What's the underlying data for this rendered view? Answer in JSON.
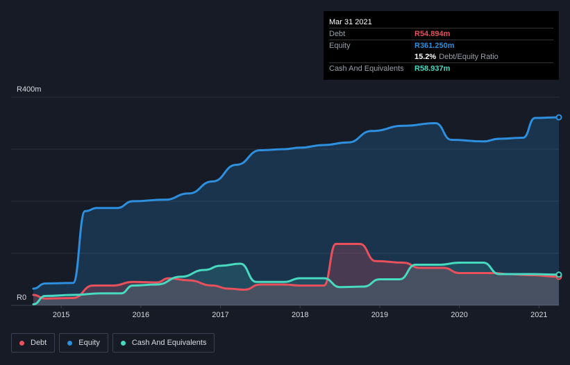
{
  "chart_data": {
    "type": "area",
    "title": "",
    "xlabel": "",
    "ylabel": "",
    "y_label_top": "R400m",
    "y_label_bottom": "R0",
    "ylim": [
      0,
      400
    ],
    "xlim": [
      2014.65,
      2021.25
    ],
    "x_tick_labels": [
      "2015",
      "2016",
      "2017",
      "2018",
      "2019",
      "2020",
      "2021"
    ],
    "x_ticks": [
      2015,
      2016,
      2017,
      2018,
      2019,
      2020,
      2021
    ],
    "grid": true,
    "legend_placement": "bottom-left",
    "series": [
      {
        "name": "Equity",
        "color": "#2d8fdd",
        "points": [
          [
            2014.65,
            32
          ],
          [
            2014.8,
            42
          ],
          [
            2015.15,
            43
          ],
          [
            2015.3,
            181
          ],
          [
            2015.45,
            187
          ],
          [
            2015.7,
            187
          ],
          [
            2015.9,
            200
          ],
          [
            2016.3,
            203
          ],
          [
            2016.6,
            215
          ],
          [
            2016.9,
            238
          ],
          [
            2017.2,
            270
          ],
          [
            2017.5,
            298
          ],
          [
            2017.8,
            300
          ],
          [
            2018.0,
            303
          ],
          [
            2018.3,
            308
          ],
          [
            2018.6,
            313
          ],
          [
            2018.9,
            335
          ],
          [
            2019.3,
            345
          ],
          [
            2019.7,
            350
          ],
          [
            2019.9,
            318
          ],
          [
            2020.3,
            315
          ],
          [
            2020.5,
            320
          ],
          [
            2020.8,
            322
          ],
          [
            2020.95,
            360
          ],
          [
            2021.25,
            361.25
          ]
        ]
      },
      {
        "name": "Debt",
        "color": "#e8505b",
        "points": [
          [
            2014.65,
            20
          ],
          [
            2014.8,
            13
          ],
          [
            2015.15,
            14
          ],
          [
            2015.4,
            38
          ],
          [
            2015.65,
            38
          ],
          [
            2015.9,
            45
          ],
          [
            2016.2,
            44
          ],
          [
            2016.35,
            52
          ],
          [
            2016.6,
            48
          ],
          [
            2016.9,
            38
          ],
          [
            2017.1,
            32
          ],
          [
            2017.3,
            30
          ],
          [
            2017.5,
            40
          ],
          [
            2017.8,
            40
          ],
          [
            2018.0,
            38
          ],
          [
            2018.3,
            38
          ],
          [
            2018.45,
            118
          ],
          [
            2018.75,
            118
          ],
          [
            2018.95,
            85
          ],
          [
            2019.3,
            82
          ],
          [
            2019.5,
            72
          ],
          [
            2019.8,
            72
          ],
          [
            2020.0,
            62
          ],
          [
            2020.45,
            62
          ],
          [
            2020.6,
            60
          ],
          [
            2020.9,
            58
          ],
          [
            2021.25,
            54.894
          ]
        ]
      },
      {
        "name": "Cash And Equivalents",
        "color": "#48d9c1",
        "points": [
          [
            2014.65,
            2
          ],
          [
            2014.8,
            18
          ],
          [
            2015.15,
            20
          ],
          [
            2015.5,
            23
          ],
          [
            2015.75,
            23
          ],
          [
            2015.9,
            38
          ],
          [
            2016.2,
            40
          ],
          [
            2016.5,
            55
          ],
          [
            2016.8,
            68
          ],
          [
            2017.0,
            76
          ],
          [
            2017.25,
            80
          ],
          [
            2017.45,
            45
          ],
          [
            2017.8,
            45
          ],
          [
            2018.0,
            52
          ],
          [
            2018.3,
            52
          ],
          [
            2018.5,
            35
          ],
          [
            2018.8,
            36
          ],
          [
            2019.0,
            50
          ],
          [
            2019.25,
            50
          ],
          [
            2019.45,
            78
          ],
          [
            2019.75,
            78
          ],
          [
            2020.0,
            82
          ],
          [
            2020.3,
            82
          ],
          [
            2020.5,
            60
          ],
          [
            2020.9,
            60
          ],
          [
            2021.25,
            58.937
          ]
        ]
      }
    ]
  },
  "tooltip": {
    "date": "Mar 31 2021",
    "debt_label": "Debt",
    "debt_value": "R54.894m",
    "equity_label": "Equity",
    "equity_value": "R361.250m",
    "ratio_value": "15.2%",
    "ratio_label": "Debt/Equity Ratio",
    "cash_label": "Cash And Equivalents",
    "cash_value": "R58.937m"
  },
  "legend": [
    {
      "label": "Debt",
      "color": "#e8505b"
    },
    {
      "label": "Equity",
      "color": "#2d8fdd"
    },
    {
      "label": "Cash And Equivalents",
      "color": "#48d9c1"
    }
  ]
}
